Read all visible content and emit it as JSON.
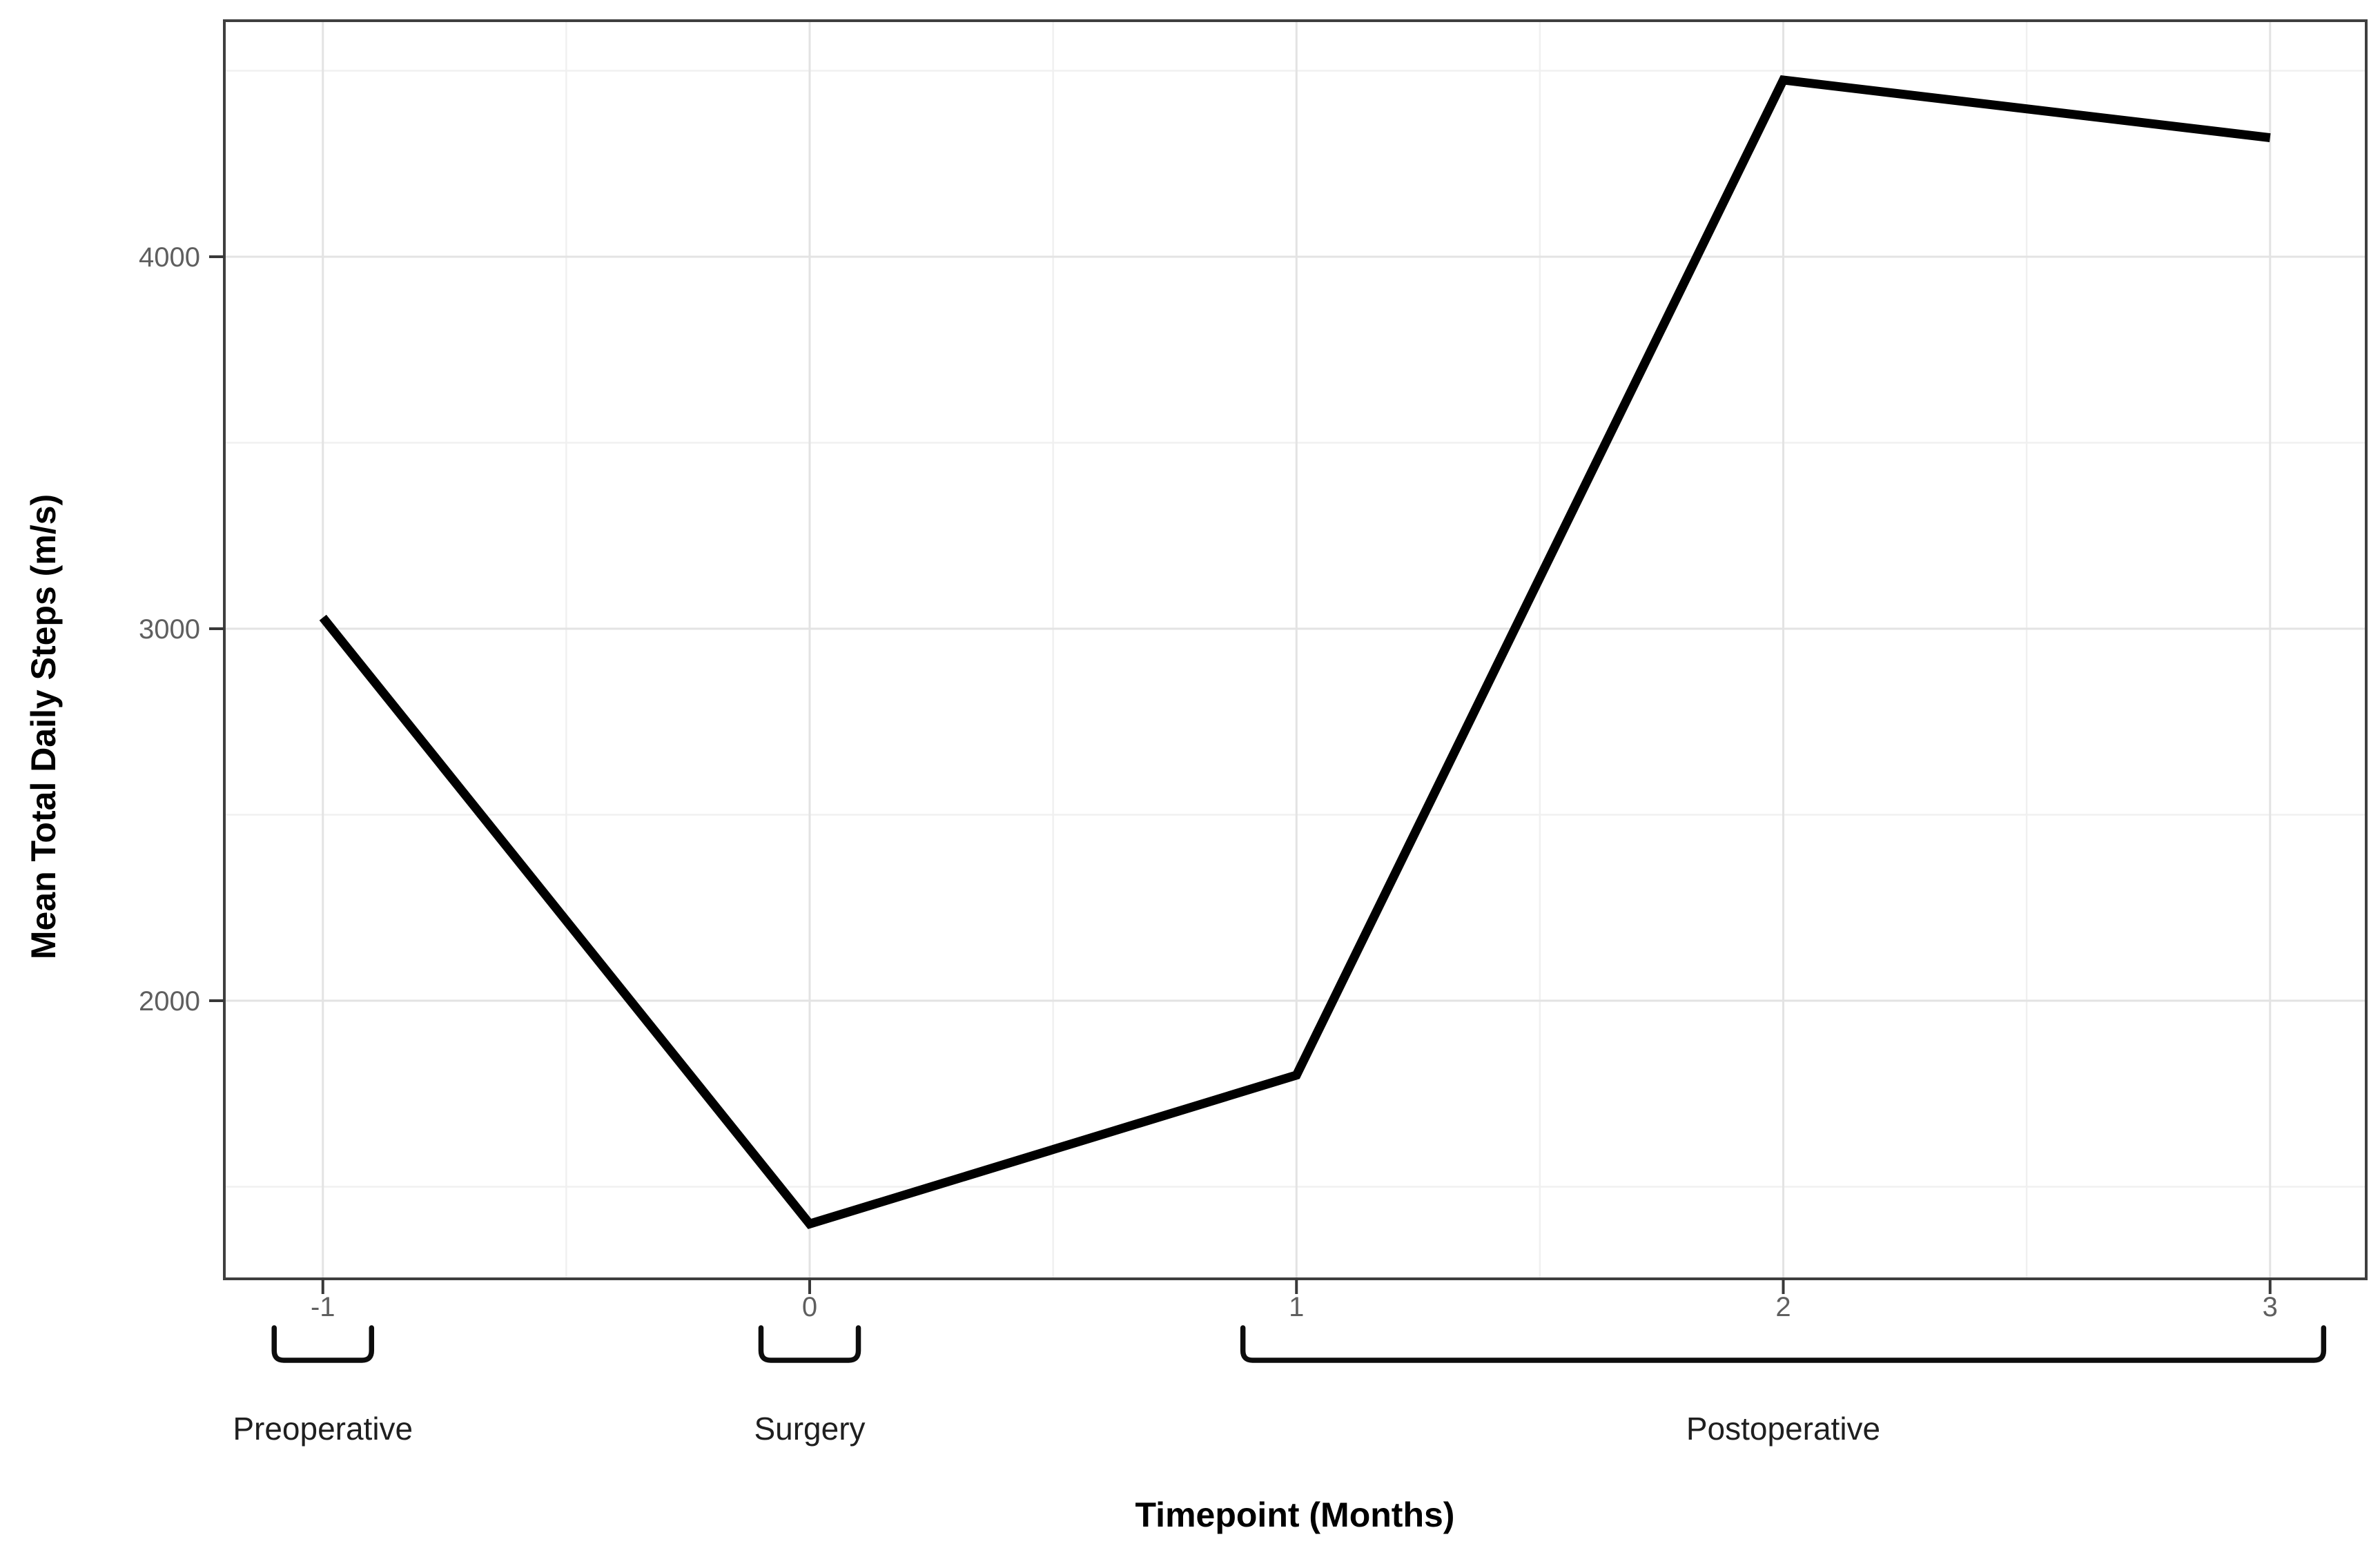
{
  "chart_data": {
    "type": "line",
    "title": "",
    "xlabel": "Timepoint (Months)",
    "ylabel": "Mean Total Daily Steps (m/s)",
    "x_ticks": [
      -1,
      0,
      1,
      2,
      3
    ],
    "x_tick_labels": [
      "-1",
      "0",
      "1",
      "2",
      "3"
    ],
    "y_ticks": [
      2000,
      3000,
      4000
    ],
    "y_tick_labels": [
      "2000",
      "3000",
      "4000"
    ],
    "x_minor_ticks": [
      -0.5,
      0.5,
      1.5,
      2.5
    ],
    "y_minor_ticks": [
      1500,
      2500,
      3500,
      4500
    ],
    "xlim": [
      -1.2,
      3.2
    ],
    "ylim": [
      1250,
      4640
    ],
    "grid": "major+minor",
    "legend": false,
    "series": [
      {
        "name": "Mean Total Daily Steps",
        "points": [
          {
            "x": -1,
            "y": 3030
          },
          {
            "x": 0,
            "y": 1400
          },
          {
            "x": 1,
            "y": 1800
          },
          {
            "x": 2,
            "y": 4475
          },
          {
            "x": 3,
            "y": 4320
          }
        ]
      }
    ],
    "annotations": [
      {
        "label": "Preoperative",
        "x_from": -1.1,
        "x_to": -0.9
      },
      {
        "label": "Surgery",
        "x_from": -0.1,
        "x_to": 0.1
      },
      {
        "label": "Postoperative",
        "x_from": 0.89,
        "x_to": 3.11
      }
    ],
    "colors": {
      "line": "#000000",
      "tick_label": "#5f5f5f",
      "grid_major": "#e3e3e3",
      "grid_minor": "#f0f0f0",
      "panel_border": "#3f3f3f",
      "annotation": "#1f1f1f",
      "background": "#ffffff"
    }
  }
}
